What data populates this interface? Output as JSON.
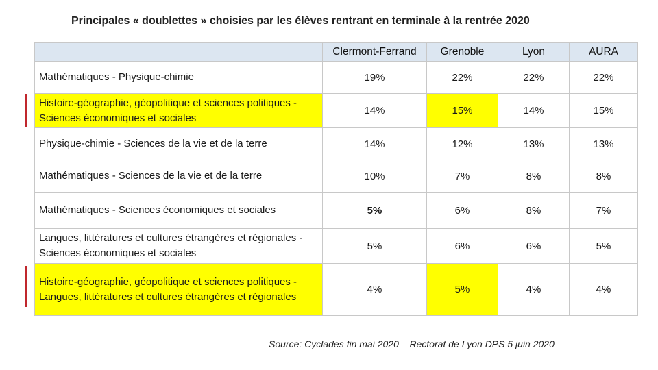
{
  "title": "Principales « doublettes » choisies par les élèves rentrant en terminale à la rentrée 2020",
  "columns": [
    "Clermont-Ferrand",
    "Grenoble",
    "Lyon",
    "AURA"
  ],
  "rows": [
    {
      "label": "Mathématiques - Physique-chimie",
      "values": [
        "19%",
        "22%",
        "22%",
        "22%"
      ],
      "label_highlight": false,
      "highlight_cols": []
    },
    {
      "label": "Histoire-géographie, géopolitique et sciences politiques - Sciences économiques et sociales",
      "values": [
        "14%",
        "15%",
        "14%",
        "15%"
      ],
      "label_highlight": true,
      "highlight_cols": [
        1
      ]
    },
    {
      "label": "Physique-chimie - Sciences de la vie et de la terre",
      "values": [
        "14%",
        "12%",
        "13%",
        "13%"
      ],
      "label_highlight": false,
      "highlight_cols": []
    },
    {
      "label": "Mathématiques - Sciences de la vie et de la terre",
      "values": [
        "10%",
        "7%",
        "8%",
        "8%"
      ],
      "label_highlight": false,
      "highlight_cols": []
    },
    {
      "label": "Mathématiques - Sciences économiques et sociales",
      "values": [
        "5%",
        "6%",
        "8%",
        "7%"
      ],
      "label_highlight": false,
      "highlight_cols": []
    },
    {
      "label": "Langues, littératures et cultures étrangères et régionales - Sciences économiques et sociales",
      "values": [
        "5%",
        "6%",
        "6%",
        "5%"
      ],
      "label_highlight": false,
      "highlight_cols": []
    },
    {
      "label": "Histoire-géographie, géopolitique et sciences politiques - Langues, littératures et cultures étrangères et régionales",
      "values": [
        "4%",
        "5%",
        "4%",
        "4%"
      ],
      "label_highlight": true,
      "highlight_cols": [
        1
      ]
    }
  ],
  "source": "Source: Cyclades fin mai 2020 – Rectorat de Lyon DPS 5 juin 2020",
  "colors": {
    "header_bg": "#dce6f1",
    "highlight": "#ffff00",
    "marker": "#c0272d"
  }
}
